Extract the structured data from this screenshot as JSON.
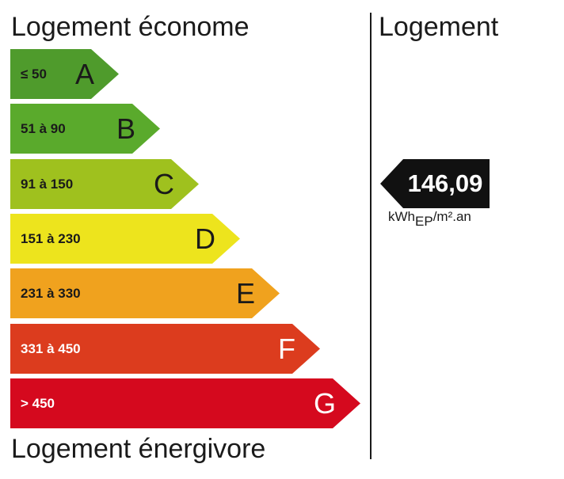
{
  "header": {
    "top_label": "Logement économe",
    "bottom_label": "Logement énergivore",
    "right_label": "Logement"
  },
  "classes": [
    {
      "letter": "A",
      "range": "≤ 50",
      "color": "#4f9b2c"
    },
    {
      "letter": "B",
      "range": "51 à 90",
      "color": "#5aaa2c"
    },
    {
      "letter": "C",
      "range": "91 à 150",
      "color": "#9fc11e"
    },
    {
      "letter": "D",
      "range": "151 à 230",
      "color": "#ede41d"
    },
    {
      "letter": "E",
      "range": "231 à 330",
      "color": "#f0a21e"
    },
    {
      "letter": "F",
      "range": "331 à 450",
      "color": "#dc3c1e"
    },
    {
      "letter": "G",
      "range": "> 450",
      "color": "#d5091e"
    }
  ],
  "current": {
    "value": "146,09",
    "unit_main": "kWh",
    "unit_sub": "EP",
    "unit_rest": "/m².an",
    "color": "#111111"
  }
}
